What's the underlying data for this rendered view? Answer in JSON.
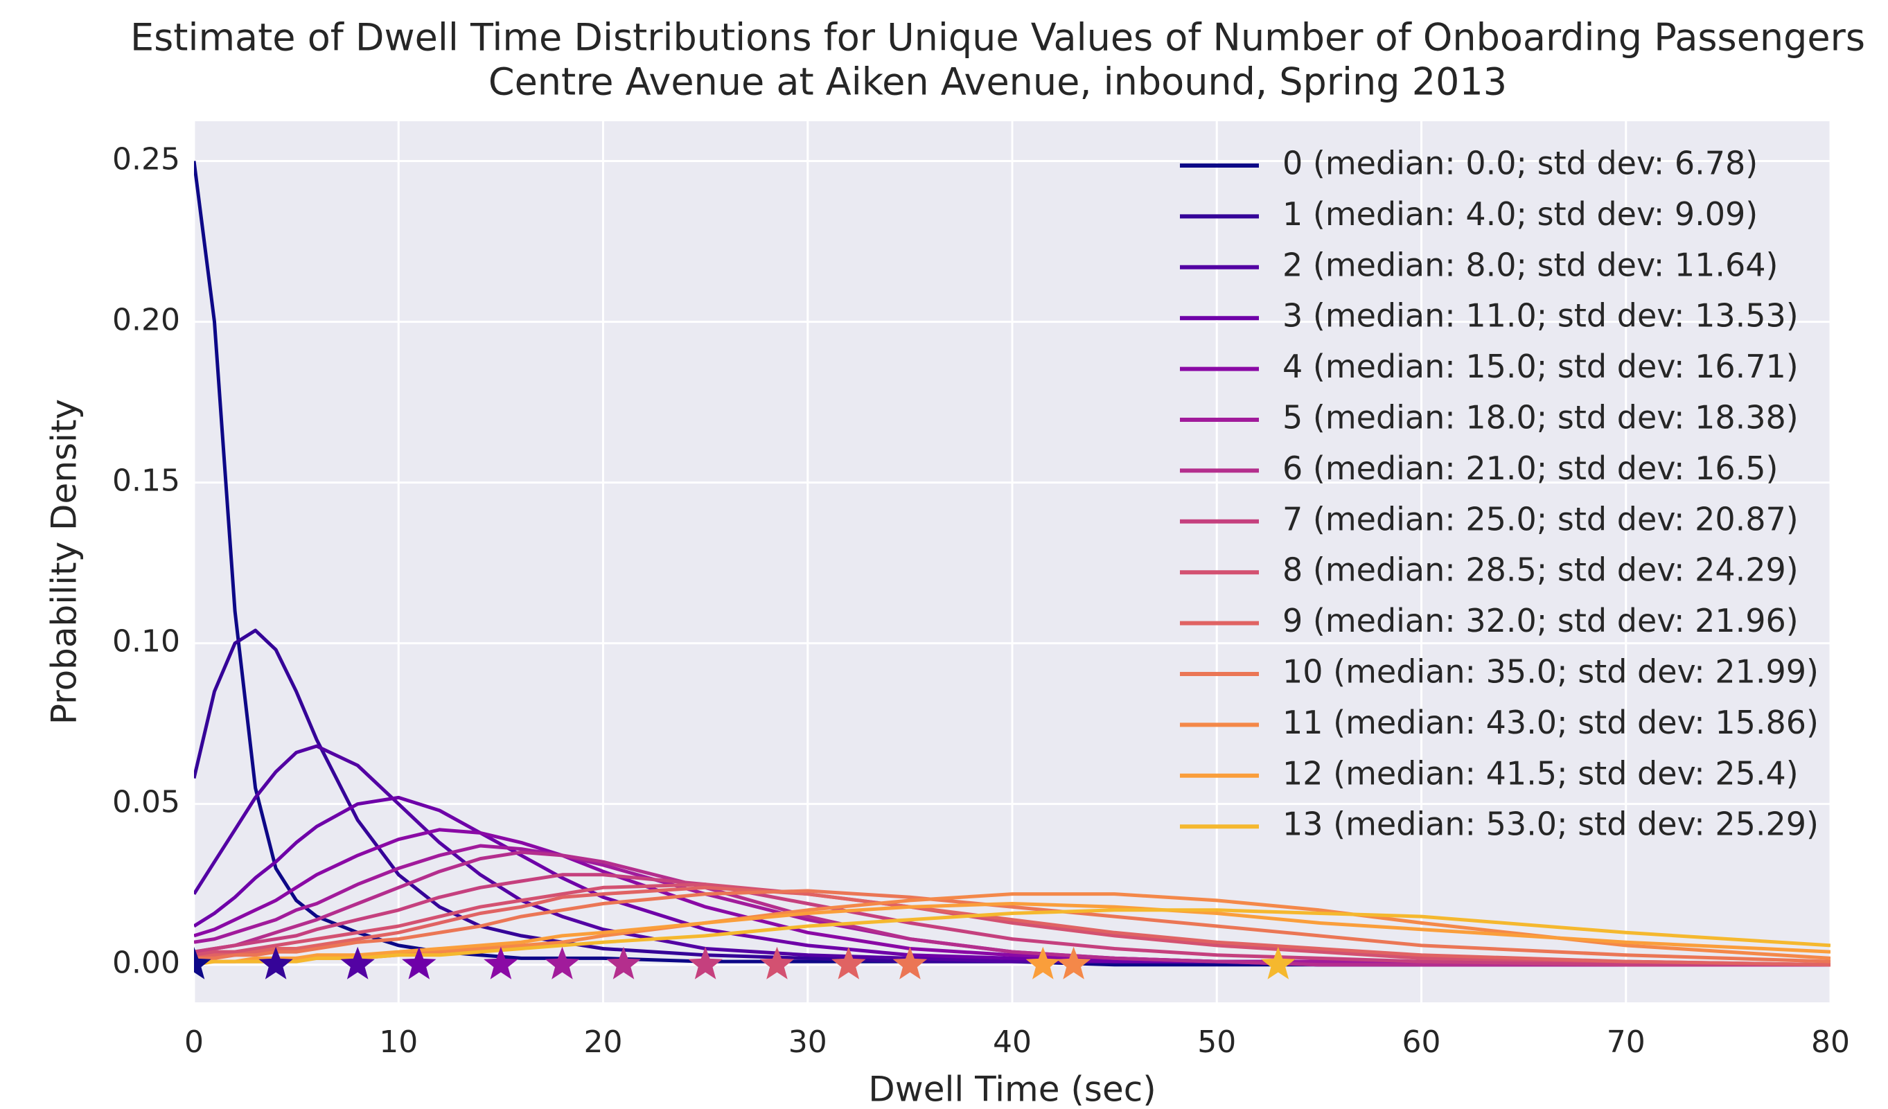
{
  "chart_data": {
    "type": "line",
    "title": "Estimate of Dwell Time Distributions for Unique Values of Number of Onboarding Passengers",
    "subtitle": "Centre Avenue at Aiken Avenue, inbound, Spring 2013",
    "x_label": "Dwell Time (sec)",
    "y_label": "Probability Density",
    "xlim": [
      0,
      80
    ],
    "xticks": [
      0,
      10,
      20,
      30,
      40,
      50,
      60,
      70,
      80
    ],
    "ylim": [
      -0.0117,
      0.2624
    ],
    "yticks": [
      {
        "value": 0,
        "label": "0.00"
      },
      {
        "value": 0.05,
        "label": "0.05"
      },
      {
        "value": 0.1,
        "label": "0.10"
      },
      {
        "value": 0.15,
        "label": "0.15"
      },
      {
        "value": 0.2,
        "label": "0.20"
      },
      {
        "value": 0.25,
        "label": "0.25"
      }
    ],
    "grid": true,
    "legend": "upper right",
    "x": [
      0,
      1,
      2,
      3,
      4,
      5,
      6,
      8,
      10,
      12,
      14,
      16,
      18,
      20,
      25,
      30,
      35,
      40,
      45,
      50,
      55,
      60,
      70,
      80
    ],
    "series": [
      {
        "name": "0 (median: 0.0; std dev: 6.78)",
        "color": "#0d0887",
        "median": 0.0,
        "values": [
          0.25,
          0.2,
          0.11,
          0.055,
          0.03,
          0.02,
          0.015,
          0.01,
          0.006,
          0.004,
          0.003,
          0.002,
          0.002,
          0.002,
          0.001,
          0.001,
          0.001,
          0.001,
          0,
          0,
          0,
          0,
          0,
          0
        ]
      },
      {
        "name": "1 (median: 4.0; std dev: 9.09)",
        "color": "#350498",
        "median": 4.0,
        "values": [
          0.058,
          0.085,
          0.1,
          0.104,
          0.098,
          0.085,
          0.07,
          0.045,
          0.028,
          0.018,
          0.012,
          0.009,
          0.007,
          0.005,
          0.003,
          0.002,
          0.001,
          0.001,
          0.001,
          0.001,
          0,
          0,
          0,
          0
        ]
      },
      {
        "name": "2 (median: 8.0; std dev: 11.64)",
        "color": "#5302a3",
        "median": 8.0,
        "values": [
          0.022,
          0.032,
          0.042,
          0.052,
          0.06,
          0.066,
          0.068,
          0.062,
          0.05,
          0.038,
          0.028,
          0.02,
          0.015,
          0.011,
          0.005,
          0.003,
          0.002,
          0.001,
          0.001,
          0.001,
          0,
          0,
          0,
          0
        ]
      },
      {
        "name": "3 (median: 11.0; std dev: 13.53)",
        "color": "#6e00a8",
        "median": 11.0,
        "values": [
          0.012,
          0.016,
          0.021,
          0.027,
          0.032,
          0.038,
          0.043,
          0.05,
          0.052,
          0.048,
          0.041,
          0.034,
          0.027,
          0.021,
          0.011,
          0.006,
          0.003,
          0.002,
          0.001,
          0.001,
          0,
          0,
          0,
          0
        ]
      },
      {
        "name": "4 (median: 15.0; std dev: 16.71)",
        "color": "#8a09a5",
        "median": 15.0,
        "values": [
          0.009,
          0.011,
          0.014,
          0.017,
          0.02,
          0.024,
          0.028,
          0.034,
          0.039,
          0.042,
          0.041,
          0.038,
          0.034,
          0.029,
          0.018,
          0.01,
          0.005,
          0.003,
          0.002,
          0.001,
          0.001,
          0,
          0,
          0
        ]
      },
      {
        "name": "5 (median: 18.0; std dev: 18.38)",
        "color": "#a11b9b",
        "median": 18.0,
        "values": [
          0.007,
          0.008,
          0.01,
          0.012,
          0.014,
          0.017,
          0.019,
          0.025,
          0.03,
          0.034,
          0.037,
          0.036,
          0.034,
          0.031,
          0.022,
          0.014,
          0.008,
          0.004,
          0.002,
          0.001,
          0.001,
          0,
          0,
          0
        ]
      },
      {
        "name": "6 (median: 21.0; std dev: 16.5)",
        "color": "#b42e8d",
        "median": 21.0,
        "values": [
          0.004,
          0.005,
          0.006,
          0.008,
          0.01,
          0.012,
          0.014,
          0.019,
          0.024,
          0.029,
          0.033,
          0.035,
          0.034,
          0.032,
          0.024,
          0.015,
          0.008,
          0.004,
          0.002,
          0.001,
          0,
          0,
          0,
          0
        ]
      },
      {
        "name": "7 (median: 25.0; std dev: 20.87)",
        "color": "#c5407e",
        "median": 25.0,
        "values": [
          0.004,
          0.005,
          0.006,
          0.007,
          0.008,
          0.009,
          0.011,
          0.014,
          0.017,
          0.021,
          0.024,
          0.026,
          0.028,
          0.028,
          0.025,
          0.019,
          0.013,
          0.008,
          0.005,
          0.003,
          0.002,
          0.001,
          0,
          0
        ]
      },
      {
        "name": "8 (median: 28.5; std dev: 24.29)",
        "color": "#d35171",
        "median": 28.5,
        "values": [
          0.003,
          0.004,
          0.004,
          0.005,
          0.006,
          0.007,
          0.008,
          0.01,
          0.012,
          0.015,
          0.018,
          0.02,
          0.022,
          0.024,
          0.025,
          0.022,
          0.018,
          0.013,
          0.009,
          0.006,
          0.004,
          0.002,
          0.001,
          0
        ]
      },
      {
        "name": "9 (median: 32.0; std dev: 21.96)",
        "color": "#e06363",
        "median": 32.0,
        "values": [
          0.002,
          0.003,
          0.003,
          0.004,
          0.005,
          0.005,
          0.006,
          0.008,
          0.01,
          0.013,
          0.016,
          0.018,
          0.021,
          0.022,
          0.024,
          0.022,
          0.018,
          0.014,
          0.01,
          0.007,
          0.005,
          0.003,
          0.001,
          0
        ]
      },
      {
        "name": "10 (median: 35.0; std dev: 21.99)",
        "color": "#eb7655",
        "median": 35.0,
        "values": [
          0.002,
          0.002,
          0.003,
          0.003,
          0.004,
          0.004,
          0.005,
          0.007,
          0.008,
          0.01,
          0.012,
          0.015,
          0.017,
          0.019,
          0.022,
          0.023,
          0.021,
          0.018,
          0.015,
          0.012,
          0.009,
          0.006,
          0.003,
          0.001
        ]
      },
      {
        "name": "11 (median: 43.0; std dev: 15.86)",
        "color": "#f48849",
        "median": 43.0,
        "values": [
          0.001,
          0.001,
          0.001,
          0.001,
          0.001,
          0.002,
          0.002,
          0.002,
          0.003,
          0.004,
          0.005,
          0.006,
          0.007,
          0.009,
          0.013,
          0.017,
          0.02,
          0.022,
          0.022,
          0.02,
          0.017,
          0.013,
          0.006,
          0.002
        ]
      },
      {
        "name": "12 (median: 41.5; std dev: 25.4)",
        "color": "#fa9e3b",
        "median": 41.5,
        "values": [
          0.001,
          0.001,
          0.001,
          0.002,
          0.002,
          0.002,
          0.003,
          0.003,
          0.004,
          0.005,
          0.006,
          0.007,
          0.009,
          0.01,
          0.013,
          0.016,
          0.018,
          0.019,
          0.018,
          0.016,
          0.013,
          0.011,
          0.007,
          0.004
        ]
      },
      {
        "name": "13 (median: 53.0; std dev: 25.29)",
        "color": "#f5b82e",
        "median": 53.0,
        "values": [
          0,
          0.001,
          0.001,
          0.001,
          0.001,
          0.001,
          0.002,
          0.002,
          0.003,
          0.003,
          0.004,
          0.005,
          0.006,
          0.007,
          0.009,
          0.012,
          0.014,
          0.016,
          0.017,
          0.017,
          0.016,
          0.015,
          0.01,
          0.006
        ]
      }
    ]
  }
}
